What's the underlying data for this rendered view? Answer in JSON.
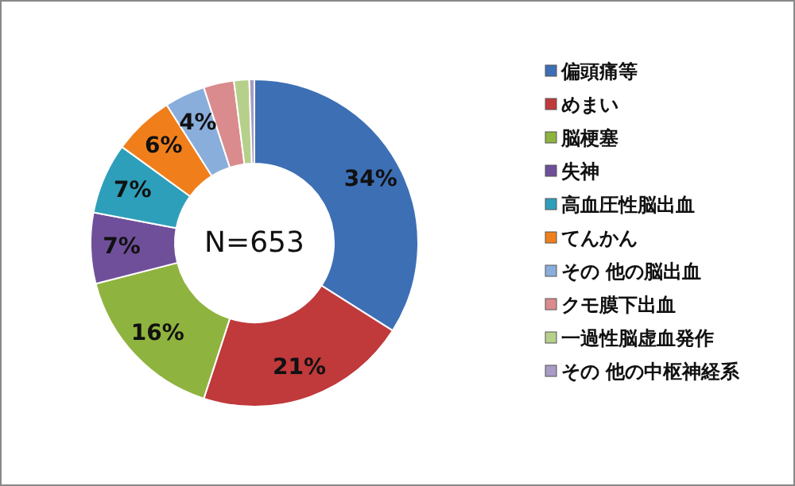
{
  "chart_data": {
    "type": "donut",
    "categories": [
      "偏頭痛等",
      "めまい",
      "脳梗塞",
      "失神",
      "高血圧性脳出血",
      "てんかん",
      "その 他の脳出血",
      "クモ膜下出血",
      "一過性脳虚血発作",
      "その 他の中枢神経系"
    ],
    "values": [
      34,
      21,
      16,
      7,
      7,
      6,
      4,
      3,
      1.5,
      0.5
    ],
    "colors": [
      "#3d6fb5",
      "#c0393b",
      "#8fb33f",
      "#6f4f9a",
      "#2e9fba",
      "#f07f1b",
      "#8aaedc",
      "#d98b8d",
      "#b6d08b",
      "#a89bc4"
    ],
    "value_labels": [
      "34%",
      "21%",
      "16%",
      "7%",
      "7%",
      "6%",
      "4%",
      null,
      null,
      null
    ],
    "annotations": [
      "N=653"
    ],
    "legend": "right"
  }
}
